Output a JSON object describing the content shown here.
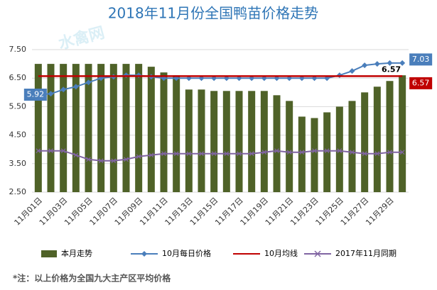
{
  "chart_data": {
    "type": "bar-line",
    "title": "2018年11月份全国鸭苗价格走势",
    "watermark": "水禽网",
    "footnote": "*注：以上价格为全国九大主产区平均价格",
    "categories": [
      "11月01日",
      null,
      "11月03日",
      null,
      "11月05日",
      null,
      "11月07日",
      null,
      "11月09日",
      null,
      "11月11日",
      null,
      "11月13日",
      null,
      "11月15日",
      null,
      "11月17日",
      null,
      "11月19日",
      null,
      "11月21日",
      null,
      "11月23日",
      null,
      "11月25日",
      null,
      "11月27日",
      null,
      "11月29日",
      null
    ],
    "ylim": [
      2.5,
      7.5
    ],
    "yticks": [
      {
        "value": 2.5,
        "label": "2.50"
      },
      {
        "value": 3.5,
        "label": "3.50"
      },
      {
        "value": 4.5,
        "label": "4.50"
      },
      {
        "value": 5.5,
        "label": "5.50"
      },
      {
        "value": 6.5,
        "label": "6.50"
      },
      {
        "value": 7.5,
        "label": "7.50"
      }
    ],
    "grid": true,
    "legend": "bottom",
    "series": [
      {
        "name": "本月走势",
        "kind": "bar",
        "color": "#4f6228",
        "values": [
          7.0,
          7.0,
          7.0,
          7.0,
          7.0,
          7.0,
          7.0,
          7.0,
          7.0,
          6.9,
          6.7,
          6.6,
          6.1,
          6.1,
          6.05,
          6.05,
          6.05,
          6.05,
          6.05,
          5.9,
          5.7,
          5.15,
          5.1,
          5.3,
          5.5,
          5.7,
          6.0,
          6.2,
          6.4,
          6.6
        ]
      },
      {
        "name": "10月每日价格",
        "kind": "line",
        "marker": "diamond",
        "color": "#4a7ebb",
        "values": [
          5.92,
          5.95,
          6.1,
          6.2,
          6.35,
          6.5,
          6.55,
          6.6,
          6.6,
          6.55,
          6.5,
          6.5,
          6.5,
          6.5,
          6.5,
          6.5,
          6.5,
          6.5,
          6.5,
          6.5,
          6.5,
          6.5,
          6.5,
          6.5,
          6.6,
          6.75,
          6.95,
          7.0,
          7.03,
          7.03
        ],
        "value_labels": [
          "5.92",
          null,
          null,
          null,
          null,
          null,
          null,
          null,
          null,
          null,
          null,
          null,
          null,
          null,
          null,
          null,
          null,
          null,
          null,
          null,
          null,
          null,
          null,
          null,
          null,
          null,
          null,
          null,
          null,
          "7.03"
        ]
      },
      {
        "name": "10月均线",
        "kind": "line",
        "marker": "none",
        "color": "#c00000",
        "values": [
          6.57,
          6.57,
          6.57,
          6.57,
          6.57,
          6.57,
          6.57,
          6.57,
          6.57,
          6.57,
          6.57,
          6.57,
          6.57,
          6.57,
          6.57,
          6.57,
          6.57,
          6.57,
          6.57,
          6.57,
          6.57,
          6.57,
          6.57,
          6.57,
          6.57,
          6.57,
          6.57,
          6.57,
          6.57,
          6.57
        ],
        "value_labels": [
          null,
          null,
          null,
          null,
          null,
          null,
          null,
          null,
          null,
          null,
          null,
          null,
          null,
          null,
          null,
          null,
          null,
          null,
          null,
          null,
          null,
          null,
          null,
          null,
          null,
          null,
          null,
          null,
          null,
          "6.57"
        ]
      },
      {
        "name": "2017年11月同期",
        "kind": "line",
        "marker": "x",
        "color": "#8064a2",
        "values": [
          3.95,
          3.95,
          3.95,
          3.8,
          3.65,
          3.6,
          3.6,
          3.65,
          3.75,
          3.8,
          3.85,
          3.85,
          3.85,
          3.85,
          3.85,
          3.85,
          3.85,
          3.85,
          3.9,
          3.95,
          3.9,
          3.9,
          3.95,
          3.95,
          3.95,
          3.9,
          3.85,
          3.85,
          3.9,
          3.9
        ]
      }
    ]
  }
}
